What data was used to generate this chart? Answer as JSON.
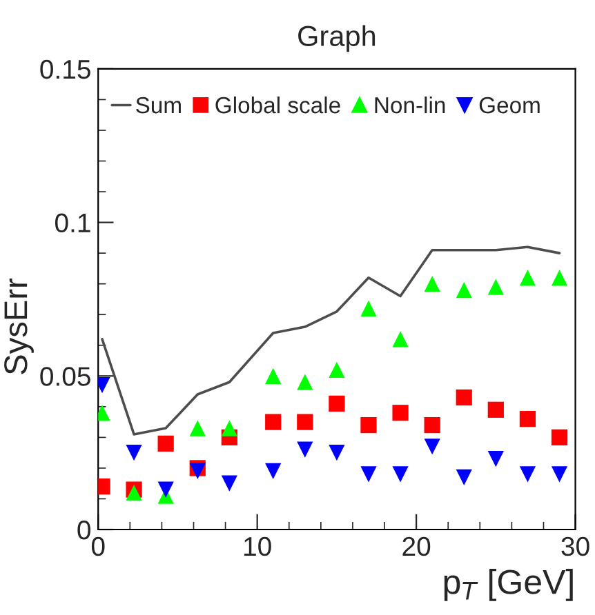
{
  "chart_data": {
    "type": "scatter",
    "title": "Graph",
    "xlabel": "p$_{T}$ [GeV]",
    "ylabel": "SysErr",
    "xlim": [
      0,
      30
    ],
    "xticks": [
      0,
      10,
      20,
      30
    ],
    "ylim": [
      0,
      0.15
    ],
    "yticks": [
      0,
      0.05,
      0.1,
      0.15
    ],
    "legend": "top left",
    "grid": false,
    "series": [
      {
        "name": "Sum",
        "type": "line",
        "color": "#4d4d4d",
        "x": [
          0.25,
          2.25,
          4.25,
          6.25,
          8.25,
          11,
          13,
          15,
          17,
          19,
          21,
          23,
          25,
          27,
          29
        ],
        "values": [
          0.062,
          0.031,
          0.033,
          0.044,
          0.048,
          0.064,
          0.066,
          0.071,
          0.082,
          0.076,
          0.091,
          0.091,
          0.091,
          0.092,
          0.09
        ]
      },
      {
        "name": "Global scale",
        "marker": "square",
        "color": "#ff0000",
        "x": [
          0.25,
          2.25,
          4.25,
          6.25,
          8.25,
          11,
          13,
          15,
          17,
          19,
          21,
          23,
          25,
          27,
          29
        ],
        "values": [
          0.014,
          0.013,
          0.028,
          0.02,
          0.03,
          0.035,
          0.035,
          0.041,
          0.034,
          0.038,
          0.034,
          0.043,
          0.039,
          0.036,
          0.03
        ]
      },
      {
        "name": "Non-lin",
        "marker": "triangle",
        "color": "#00ff00",
        "x": [
          0.25,
          2.25,
          4.25,
          6.25,
          8.25,
          11,
          13,
          15,
          17,
          19,
          21,
          23,
          25,
          27,
          29
        ],
        "values": [
          0.038,
          0.012,
          0.011,
          0.033,
          0.033,
          0.05,
          0.048,
          0.052,
          0.072,
          0.062,
          0.08,
          0.078,
          0.079,
          0.082,
          0.082
        ]
      },
      {
        "name": "Geom",
        "marker": "triangle_down",
        "color": "#0000ff",
        "x": [
          0.25,
          2.25,
          4.25,
          6.25,
          8.25,
          11,
          13,
          15,
          17,
          19,
          21,
          23,
          25,
          27,
          29
        ],
        "values": [
          0.047,
          0.025,
          0.013,
          0.019,
          0.015,
          0.019,
          0.026,
          0.025,
          0.018,
          0.018,
          0.027,
          0.017,
          0.023,
          0.018,
          0.018
        ]
      }
    ]
  }
}
